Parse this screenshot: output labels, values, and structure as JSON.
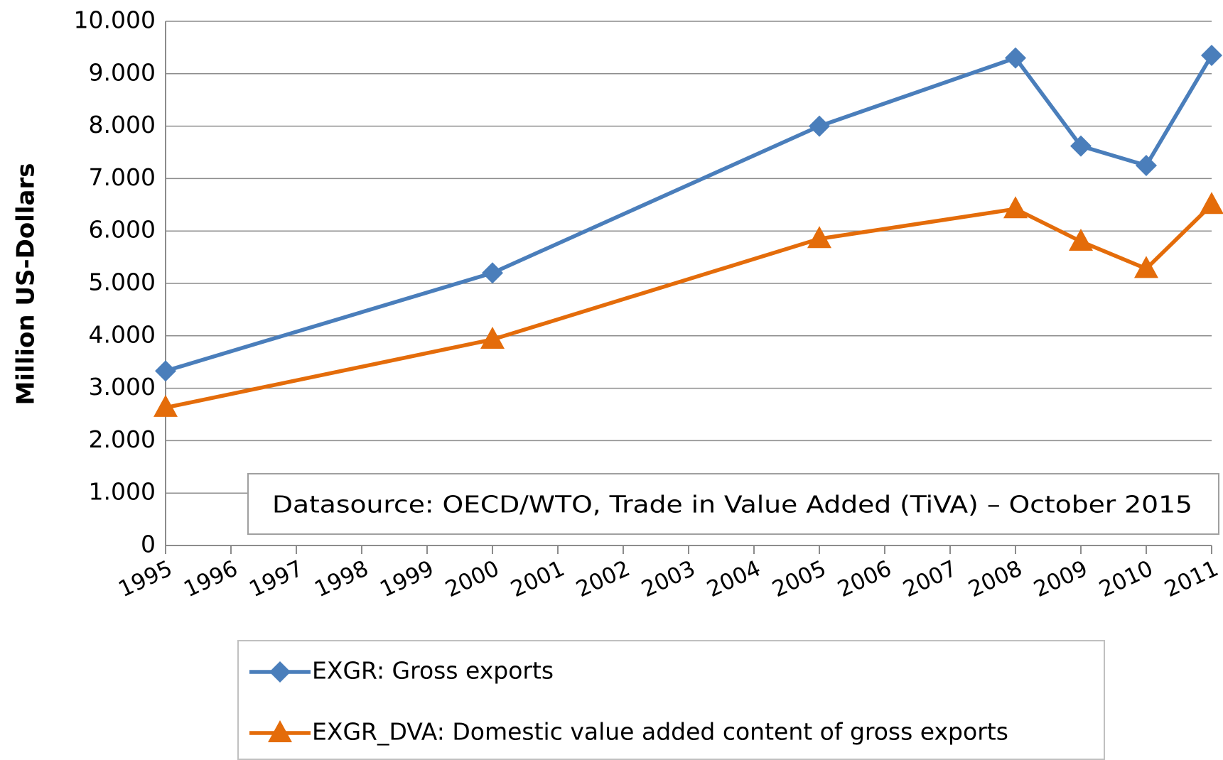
{
  "chart_data": {
    "type": "line",
    "y_label": "Million  US-Dollars",
    "annotation": "Datasource: OECD/WTO, Trade in Value Added (TiVA) – October 2015",
    "x": [
      1995,
      2000,
      2005,
      2008,
      2009,
      2010,
      2011
    ],
    "xlim": [
      1995,
      2011
    ],
    "xticks": [
      1995,
      1996,
      1997,
      1998,
      1999,
      2000,
      2001,
      2002,
      2003,
      2004,
      2005,
      2006,
      2007,
      2008,
      2009,
      2010,
      2011
    ],
    "ylim": [
      0,
      10000
    ],
    "yticks": [
      0,
      {
        "value": 1000,
        "label": "1.000"
      },
      {
        "value": 2000,
        "label": "2.000"
      },
      {
        "value": 3000,
        "label": "3.000"
      },
      {
        "value": 4000,
        "label": "4.000"
      },
      {
        "value": 5000,
        "label": "5.000"
      },
      {
        "value": 6000,
        "label": "6.000"
      },
      {
        "value": 7000,
        "label": "7.000"
      },
      {
        "value": 8000,
        "label": "8.000"
      },
      {
        "value": 9000,
        "label": "9.000"
      },
      {
        "value": 10000,
        "label": "10.000"
      }
    ],
    "grid": true,
    "legend": "bottom",
    "series": [
      {
        "name": "EXGR: Gross exports",
        "color": "#4a7ebb",
        "marker": "diamond",
        "values": [
          3330,
          5200,
          8000,
          9300,
          7620,
          7250,
          9350
        ]
      },
      {
        "name": "EXGR_DVA: Domestic value added content of gross exports",
        "color": "#e46c0a",
        "marker": "triangle",
        "values": [
          2630,
          3930,
          5850,
          6420,
          5800,
          5280,
          6500
        ]
      }
    ]
  }
}
